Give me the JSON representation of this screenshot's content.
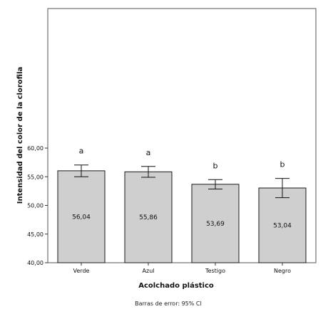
{
  "chart_data": {
    "type": "bar",
    "categories": [
      "Verde",
      "Azul",
      "Testigo",
      "Negro"
    ],
    "values": [
      56.04,
      55.86,
      53.69,
      53.04
    ],
    "value_labels": [
      "56,04",
      "55,86",
      "53,69",
      "53,04"
    ],
    "error_low": [
      55.0,
      54.9,
      52.85,
      51.35
    ],
    "error_high": [
      57.05,
      56.8,
      54.5,
      54.7
    ],
    "significance_letters": [
      "a",
      "a",
      "b",
      "b"
    ],
    "xlabel": "Acolchado plástico",
    "ylabel": "Intensidad del color de la clorofila",
    "ylim": [
      40,
      62
    ],
    "yticks": [
      40,
      45,
      50,
      55,
      60
    ],
    "ytick_labels": [
      "40,00",
      "45,00",
      "50,00",
      "55,00",
      "60,00"
    ],
    "footnote": "Barras de error: 95% CI",
    "grid": false,
    "bar_color": "#cfcfcf",
    "bar_edge_color": "#1a1a1a"
  }
}
